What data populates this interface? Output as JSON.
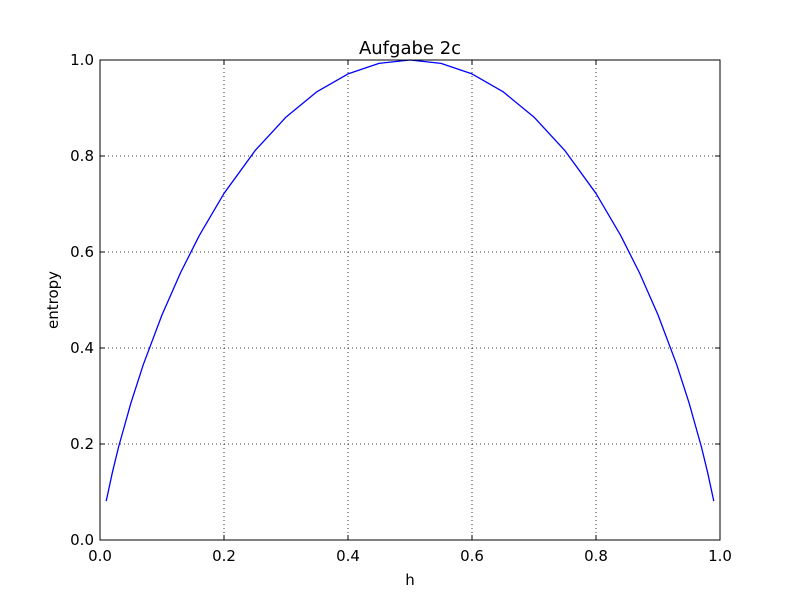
{
  "chart_data": {
    "type": "line",
    "title": "Aufgabe 2c",
    "xlabel": "h",
    "ylabel": "entropy",
    "xlim": [
      0.0,
      1.0
    ],
    "ylim": [
      0.0,
      1.0
    ],
    "xticks": [
      "0.0",
      "0.2",
      "0.4",
      "0.6",
      "0.8",
      "1.0"
    ],
    "yticks": [
      "0.0",
      "0.2",
      "0.4",
      "0.6",
      "0.8",
      "1.0"
    ],
    "grid": true,
    "series": [
      {
        "color": "#0000ff",
        "x": [
          0.01,
          0.02,
          0.03,
          0.05,
          0.07,
          0.1,
          0.13,
          0.16,
          0.2,
          0.25,
          0.3,
          0.35,
          0.4,
          0.45,
          0.5,
          0.55,
          0.6,
          0.65,
          0.7,
          0.75,
          0.8,
          0.84,
          0.87,
          0.9,
          0.93,
          0.95,
          0.97,
          0.98,
          0.99
        ],
        "y": [
          0.081,
          0.141,
          0.194,
          0.286,
          0.366,
          0.469,
          0.557,
          0.634,
          0.722,
          0.811,
          0.881,
          0.934,
          0.971,
          0.993,
          1.0,
          0.993,
          0.971,
          0.934,
          0.881,
          0.811,
          0.722,
          0.634,
          0.557,
          0.469,
          0.366,
          0.286,
          0.194,
          0.141,
          0.081
        ]
      }
    ]
  }
}
